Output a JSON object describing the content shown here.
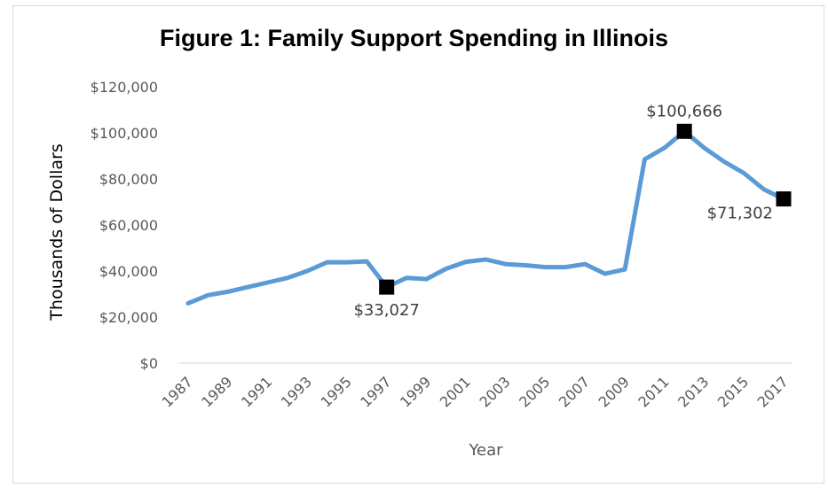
{
  "chart_data": {
    "type": "line",
    "title": "Figure 1: Family Support Spending in Illinois",
    "xlabel": "Year",
    "ylabel": "Thousands of Dollars",
    "ylim": [
      0,
      120000
    ],
    "y_ticks": [
      "$0",
      "$20,000",
      "$40,000",
      "$60,000",
      "$80,000",
      "$100,000",
      "$120,000"
    ],
    "x_ticks": [
      "1987",
      "1989",
      "1991",
      "1993",
      "1995",
      "1997",
      "1999",
      "2001",
      "2003",
      "2005",
      "2007",
      "2009",
      "2011",
      "2013",
      "2015",
      "2017"
    ],
    "grid": false,
    "legend": "none",
    "series": [
      {
        "color": "#5b9bd5",
        "x": [
          1987,
          1988,
          1989,
          1990,
          1991,
          1992,
          1993,
          1994,
          1995,
          1996,
          1997,
          1998,
          1999,
          2000,
          2001,
          2002,
          2003,
          2004,
          2005,
          2006,
          2007,
          2008,
          2009,
          2010,
          2011,
          2012,
          2013,
          2014,
          2015,
          2016,
          2017
        ],
        "values": [
          26000,
          29500,
          31000,
          33000,
          35000,
          37000,
          40000,
          43800,
          43800,
          44200,
          33027,
          37000,
          36500,
          41000,
          44000,
          45000,
          43000,
          42500,
          41700,
          41700,
          43000,
          38800,
          40700,
          88500,
          93500,
          100666,
          93500,
          87500,
          82500,
          75500,
          71302
        ]
      }
    ],
    "markers": [
      {
        "x": 1997,
        "y": 33027,
        "label": "$33,027",
        "position": "below"
      },
      {
        "x": 2012,
        "y": 100666,
        "label": "$100,666",
        "position": "above"
      },
      {
        "x": 2017,
        "y": 71302,
        "label": "$71,302",
        "position": "left"
      }
    ],
    "marker_color": "#000000"
  }
}
